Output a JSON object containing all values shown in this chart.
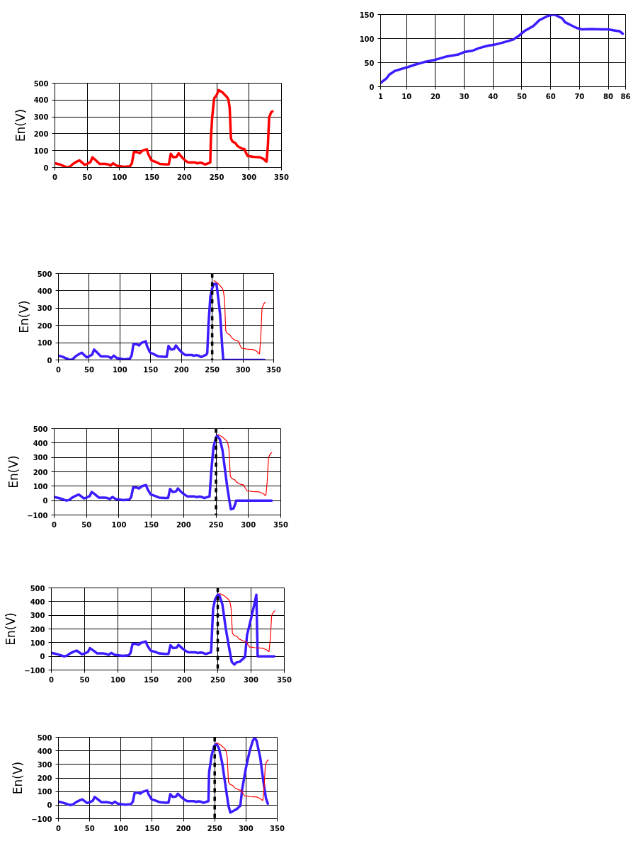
{
  "chart_data": [
    {
      "type": "line",
      "ylabel": "En(V)",
      "xlim": [
        0,
        350
      ],
      "ylim": [
        0,
        500
      ],
      "xticks": [
        0,
        50,
        100,
        150,
        200,
        250,
        300,
        350
      ],
      "yticks": [
        0,
        100,
        200,
        300,
        400,
        500
      ],
      "grid": true,
      "series": [
        {
          "color": "#ff0000",
          "x": [
            0,
            7,
            14,
            19,
            23,
            28,
            34,
            38,
            41,
            46,
            50,
            55,
            58,
            63,
            69,
            78,
            82,
            86,
            90,
            95,
            101,
            107,
            116,
            119,
            122,
            127,
            131,
            135,
            142,
            144,
            149,
            156,
            162,
            171,
            176,
            179,
            183,
            188,
            191,
            197,
            202,
            206,
            217,
            220,
            224,
            228,
            232,
            237,
            240,
            241,
            243,
            246,
            250,
            253,
            259,
            266,
            268,
            270,
            272,
            274,
            279,
            282,
            288,
            293,
            295,
            298,
            302,
            306,
            317,
            323,
            325,
            327,
            329,
            331,
            334,
            336
          ],
          "values": [
            25,
            18,
            8,
            0,
            4,
            21,
            35,
            42,
            32,
            15,
            21,
            32,
            60,
            43,
            21,
            21,
            18,
            11,
            25,
            11,
            7,
            3,
            7,
            25,
            91,
            91,
            84,
            99,
            108,
            81,
            43,
            32,
            21,
            18,
            18,
            81,
            60,
            63,
            84,
            57,
            39,
            29,
            29,
            24,
            28,
            25,
            17,
            25,
            29,
            172,
            298,
            410,
            431,
            459,
            445,
            417,
            403,
            354,
            172,
            155,
            144,
            127,
            113,
            108,
            88,
            67,
            66,
            63,
            60,
            49,
            39,
            35,
            130,
            298,
            326,
            333
          ]
        }
      ]
    },
    {
      "type": "line",
      "ylabel": "En(V)",
      "xlim": [
        0,
        350
      ],
      "ylim": [
        0,
        500
      ],
      "xticks": [
        0,
        50,
        100,
        150,
        200,
        250,
        300,
        350
      ],
      "yticks": [
        0,
        100,
        200,
        300,
        400,
        500
      ],
      "grid": true,
      "ref_lines": [
        {
          "axis": "x",
          "value": 250,
          "color": "#000000",
          "line_style": "dashed"
        }
      ],
      "series": [
        {
          "color": "#3b1dff",
          "x": [
            0,
            7,
            14,
            19,
            23,
            28,
            34,
            38,
            41,
            46,
            50,
            55,
            58,
            63,
            69,
            78,
            82,
            86,
            90,
            95,
            101,
            107,
            116,
            119,
            122,
            127,
            131,
            135,
            142,
            144,
            149,
            156,
            162,
            171,
            176,
            179,
            183,
            188,
            191,
            197,
            202,
            206,
            217,
            220,
            224,
            228,
            232,
            237,
            240,
            242,
            244,
            247,
            250,
            253,
            257,
            260,
            263,
            266,
            268,
            335
          ],
          "values": [
            25,
            18,
            8,
            0,
            4,
            21,
            35,
            42,
            32,
            15,
            21,
            32,
            60,
            43,
            21,
            21,
            18,
            11,
            25,
            11,
            7,
            3,
            7,
            25,
            91,
            91,
            84,
            99,
            108,
            81,
            43,
            32,
            21,
            18,
            18,
            81,
            60,
            63,
            84,
            57,
            39,
            29,
            29,
            24,
            28,
            25,
            17,
            25,
            29,
            40,
            205,
            365,
            415,
            440,
            440,
            355,
            260,
            95,
            0,
            0
          ]
        },
        {
          "color": "#ff0000",
          "x": [
            253,
            259,
            266,
            268,
            270,
            272,
            274,
            279,
            282,
            288,
            293,
            295,
            298,
            302,
            306,
            317,
            323,
            325,
            327,
            329,
            331,
            334,
            336
          ],
          "values": [
            459,
            445,
            417,
            403,
            354,
            172,
            155,
            144,
            127,
            113,
            108,
            88,
            67,
            66,
            63,
            60,
            49,
            39,
            35,
            130,
            298,
            326,
            333
          ]
        }
      ]
    },
    {
      "type": "line",
      "ylabel": "En(V)",
      "xlim": [
        0,
        350
      ],
      "ylim": [
        -100,
        500
      ],
      "xticks": [
        0,
        50,
        100,
        150,
        200,
        250,
        300,
        350
      ],
      "yticks": [
        -100,
        0,
        100,
        200,
        300,
        400,
        500
      ],
      "grid": true,
      "ref_lines": [
        {
          "axis": "x",
          "value": 250,
          "color": "#000000",
          "line_style": "dashed"
        }
      ],
      "series": [
        {
          "color": "#3b1dff",
          "x": [
            0,
            7,
            14,
            19,
            23,
            28,
            34,
            38,
            41,
            46,
            50,
            55,
            58,
            63,
            69,
            78,
            82,
            86,
            90,
            95,
            101,
            107,
            116,
            119,
            122,
            127,
            131,
            135,
            142,
            144,
            149,
            156,
            162,
            171,
            176,
            179,
            183,
            188,
            191,
            197,
            202,
            206,
            217,
            220,
            224,
            228,
            232,
            237,
            240,
            243,
            246,
            250,
            252,
            256,
            260,
            263,
            267,
            271,
            273,
            277,
            280,
            281,
            336
          ],
          "values": [
            25,
            18,
            8,
            0,
            4,
            21,
            35,
            42,
            32,
            15,
            21,
            32,
            60,
            43,
            21,
            21,
            18,
            11,
            25,
            11,
            7,
            3,
            7,
            25,
            91,
            91,
            84,
            99,
            108,
            81,
            43,
            32,
            21,
            18,
            18,
            81,
            60,
            63,
            84,
            57,
            39,
            29,
            29,
            24,
            28,
            25,
            17,
            25,
            29,
            220,
            370,
            440,
            450,
            425,
            350,
            245,
            105,
            -10,
            -60,
            -55,
            -20,
            0,
            0
          ]
        },
        {
          "color": "#ff0000",
          "x": [
            253,
            259,
            266,
            268,
            270,
            272,
            274,
            279,
            282,
            288,
            293,
            295,
            298,
            302,
            306,
            317,
            323,
            325,
            327,
            329,
            331,
            334,
            336
          ],
          "values": [
            459,
            445,
            417,
            403,
            354,
            172,
            155,
            144,
            127,
            113,
            108,
            88,
            67,
            66,
            63,
            60,
            49,
            39,
            35,
            130,
            298,
            326,
            333
          ]
        }
      ]
    },
    {
      "type": "line",
      "ylabel": "En(V)",
      "xlim": [
        0,
        350
      ],
      "ylim": [
        -100,
        500
      ],
      "xticks": [
        0,
        50,
        100,
        150,
        200,
        250,
        300,
        350
      ],
      "yticks": [
        -100,
        0,
        100,
        200,
        300,
        400,
        500
      ],
      "grid": true,
      "ref_lines": [
        {
          "axis": "x",
          "value": 250,
          "color": "#000000",
          "line_style": "dashed"
        }
      ],
      "series": [
        {
          "color": "#3b1dff",
          "x": [
            0,
            7,
            14,
            19,
            23,
            28,
            34,
            38,
            41,
            46,
            50,
            55,
            58,
            63,
            69,
            78,
            82,
            86,
            90,
            95,
            101,
            107,
            116,
            119,
            122,
            127,
            131,
            135,
            142,
            144,
            149,
            156,
            162,
            171,
            176,
            179,
            183,
            188,
            191,
            197,
            202,
            206,
            217,
            220,
            224,
            228,
            232,
            237,
            240,
            243,
            246,
            250,
            252,
            257,
            262,
            267,
            271,
            275,
            278,
            283,
            291,
            294,
            299,
            305,
            308,
            310,
            335
          ],
          "values": [
            25,
            18,
            8,
            0,
            4,
            21,
            35,
            42,
            32,
            15,
            21,
            32,
            60,
            43,
            21,
            21,
            18,
            11,
            25,
            11,
            7,
            3,
            7,
            25,
            91,
            91,
            84,
            99,
            108,
            81,
            43,
            32,
            21,
            18,
            18,
            81,
            60,
            63,
            84,
            57,
            39,
            29,
            29,
            24,
            28,
            25,
            17,
            25,
            29,
            345,
            415,
            450,
            450,
            380,
            205,
            65,
            -40,
            -60,
            -45,
            -40,
            -5,
            155,
            255,
            380,
            450,
            0,
            0
          ]
        },
        {
          "color": "#ff0000",
          "x": [
            253,
            259,
            266,
            268,
            270,
            272,
            274,
            279,
            282,
            288,
            293,
            295,
            298,
            302,
            306,
            317,
            323,
            325,
            327,
            329,
            331,
            334,
            336
          ],
          "values": [
            459,
            445,
            417,
            403,
            354,
            172,
            155,
            144,
            127,
            113,
            108,
            88,
            67,
            66,
            63,
            60,
            49,
            39,
            35,
            130,
            298,
            326,
            333
          ]
        }
      ]
    },
    {
      "type": "line",
      "ylabel": "En(V)",
      "xlim": [
        0,
        350
      ],
      "ylim": [
        -100,
        500
      ],
      "xticks": [
        0,
        50,
        100,
        150,
        200,
        250,
        300,
        350
      ],
      "yticks": [
        -100,
        0,
        100,
        200,
        300,
        400,
        500
      ],
      "grid": true,
      "ref_lines": [
        {
          "axis": "x",
          "value": 250,
          "color": "#000000",
          "line_style": "dashed"
        }
      ],
      "series": [
        {
          "color": "#3b1dff",
          "x": [
            0,
            7,
            14,
            19,
            23,
            28,
            34,
            38,
            41,
            46,
            50,
            55,
            58,
            63,
            69,
            78,
            82,
            86,
            90,
            95,
            101,
            107,
            116,
            119,
            122,
            127,
            131,
            135,
            142,
            144,
            149,
            156,
            162,
            171,
            176,
            179,
            183,
            188,
            191,
            197,
            202,
            206,
            217,
            220,
            224,
            228,
            232,
            237,
            240,
            241,
            245,
            249,
            253,
            257,
            262,
            268,
            272,
            275,
            279,
            285,
            291,
            294,
            300,
            306,
            311,
            314,
            317,
            323,
            328,
            332,
            335
          ],
          "values": [
            25,
            18,
            8,
            0,
            4,
            21,
            35,
            42,
            32,
            15,
            21,
            32,
            60,
            43,
            21,
            21,
            18,
            11,
            25,
            11,
            7,
            3,
            7,
            25,
            91,
            91,
            84,
            99,
            108,
            81,
            43,
            32,
            21,
            18,
            18,
            81,
            60,
            63,
            84,
            57,
            39,
            29,
            29,
            24,
            28,
            25,
            17,
            25,
            29,
            240,
            365,
            435,
            450,
            415,
            310,
            120,
            -5,
            -55,
            -45,
            -30,
            -5,
            120,
            275,
            400,
            475,
            495,
            475,
            345,
            170,
            50,
            10
          ]
        },
        {
          "color": "#ff0000",
          "x": [
            253,
            259,
            266,
            268,
            270,
            272,
            274,
            279,
            282,
            288,
            293,
            295,
            298,
            302,
            306,
            317,
            323,
            325,
            327,
            329,
            331,
            334,
            336
          ],
          "values": [
            459,
            445,
            417,
            403,
            354,
            172,
            155,
            144,
            127,
            113,
            108,
            88,
            67,
            66,
            63,
            60,
            49,
            39,
            35,
            130,
            298,
            326,
            333
          ]
        }
      ]
    },
    {
      "type": "line",
      "xlim": [
        1,
        86
      ],
      "ylim": [
        0,
        150
      ],
      "xticks": [
        1,
        10,
        20,
        30,
        40,
        50,
        60,
        70,
        80,
        86
      ],
      "yticks": [
        0,
        50,
        100,
        150
      ],
      "grid": true,
      "series": [
        {
          "color": "#3b1dff",
          "x": [
            1,
            3,
            4,
            6,
            10,
            13,
            16,
            20,
            24,
            28,
            30,
            33,
            35,
            38,
            41,
            43,
            47,
            49,
            51,
            54,
            56,
            59,
            61,
            62,
            64,
            65,
            67,
            69,
            71,
            74,
            78,
            80,
            82,
            84,
            85
          ],
          "values": [
            8,
            17,
            25,
            33,
            40,
            46,
            51,
            56,
            63,
            67,
            72,
            75,
            80,
            85,
            88,
            91,
            98,
            106,
            116,
            126,
            138,
            147,
            150,
            148,
            142,
            134,
            128,
            122,
            119,
            120,
            119,
            119,
            117,
            115,
            110
          ]
        }
      ]
    }
  ]
}
